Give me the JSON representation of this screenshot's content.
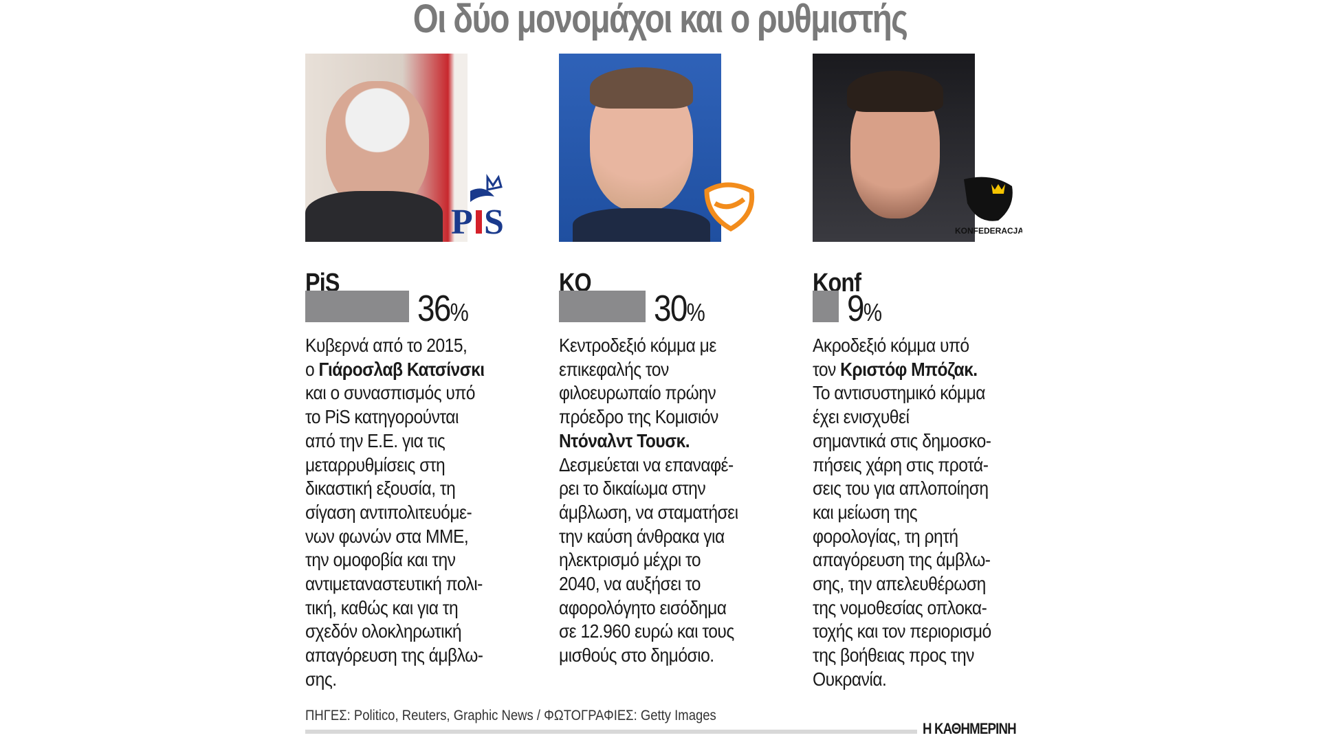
{
  "title": "Οι δύο μονομάχοι και ο ρυθμιστής",
  "colors": {
    "bar": "#8a8a8c",
    "title": "#7a7a7a",
    "pis_blue": "#1a3a8c",
    "pis_red": "#d4202a",
    "ko_orange": "#f28c1c"
  },
  "parties": [
    {
      "name": "PiS",
      "percent": 36,
      "percent_label": "36",
      "logo": "pis-logo",
      "lines": [
        "Κυβερνά από το 2015,",
        "ο |Γιάροσλαβ Κατσίνσκι",
        "και ο συνασπισμός υπό",
        "το PiS κατηγορούνται",
        "από την Ε.Ε. για τις",
        "μεταρρυθμίσεις στη",
        "δικαστική εξουσία, τη",
        "σίγαση αντιπολιτευόμε-",
        "νων φωνών στα ΜΜΕ,",
        "την ομοφοβία και την",
        "αντιμεταναστευτική πολι-",
        "τική, καθώς και για τη",
        "σχεδόν ολοκληρωτική",
        "απαγόρευση της άμβλω-",
        "σης."
      ]
    },
    {
      "name": "KO",
      "percent": 30,
      "percent_label": "30",
      "logo": "ko-logo",
      "lines": [
        "Κεντροδεξιό κόμμα με",
        "επικεφαλής τον",
        "φιλοευρωπαίο πρώην",
        "πρόεδρο της Κομισιόν",
        "|Ντόναλντ Τουσκ.",
        "Δεσμεύεται να επαναφέ-",
        "ρει το δικαίωμα στην",
        "άμβλωση, να σταματήσει",
        "την καύση άνθρακα για",
        "ηλεκτρισμό μέχρι το",
        "2040, να αυξήσει το",
        "αφορολόγητο εισόδημα",
        "σε 12.960 ευρώ και τους",
        "μισθούς στο δημόσιο."
      ]
    },
    {
      "name": "Konf",
      "percent": 9,
      "percent_label": "9",
      "logo": "konfederacja-logo",
      "logo_text": "KONFEDERACJA",
      "lines": [
        "Ακροδεξιό κόμμα υπό",
        "τον |Κριστόφ Μπόζακ.",
        "Το αντισυστημικό κόμμα",
        "έχει ενισχυθεί",
        "σημαντικά στις δημοσκο-",
        "πήσεις χάρη στις προτά-",
        "σεις του για απλοποίηση",
        "και μείωση της",
        "φορολογίας, τη ρητή",
        "απαγόρευση της άμβλω-",
        "σης, την απελευθέρωση",
        "της νομοθεσίας οπλοκα-",
        "τοχής και τον περιορισμό",
        "της βοήθειας προς την",
        "Ουκρανία."
      ]
    }
  ],
  "percent_sign": "%",
  "footer": {
    "sources": "ΠΗΓΕΣ: Politico, Reuters, Graphic News / ΦΩΤΟΓΡΑΦΙΕΣ: Getty Images",
    "brand": "Η ΚΑΘΗΜΕΡΙΝΗ"
  }
}
